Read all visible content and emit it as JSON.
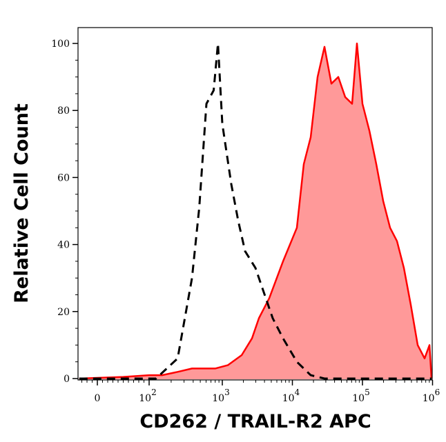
{
  "chart_data": {
    "type": "area",
    "xlabel": "CD262 / TRAIL-R2 APC",
    "ylabel": "Relative Cell Count",
    "x_scale": "biexponential",
    "ylim": [
      0,
      105
    ],
    "grid": false,
    "x_ticks": [
      {
        "value": 0,
        "base": "0",
        "exp": ""
      },
      {
        "value": 100,
        "base": "10",
        "exp": "2"
      },
      {
        "value": 1000,
        "base": "10",
        "exp": "3"
      },
      {
        "value": 10000,
        "base": "10",
        "exp": "4"
      },
      {
        "value": 100000,
        "base": "10",
        "exp": "5"
      },
      {
        "value": 1000000,
        "base": "10",
        "exp": "6"
      }
    ],
    "y_ticks": [
      "0",
      "20",
      "40",
      "60",
      "80",
      "100"
    ],
    "series": [
      {
        "style": "dashed",
        "color": "#000000",
        "fill": "none",
        "x": [
          -35,
          124,
          245,
          385,
          484,
          607,
          762,
          873,
          1000,
          1343,
          1687,
          2115,
          2972,
          3727,
          5240,
          7366,
          11590,
          18240,
          28710,
          1000000
        ],
        "y": [
          0,
          0,
          6,
          30,
          51,
          82,
          86,
          100,
          76,
          58,
          47,
          38,
          33,
          27,
          18,
          12,
          5,
          1,
          0,
          0
        ]
      },
      {
        "style": "solid",
        "color": "#ff0000",
        "fill": "#ff9999",
        "x": [
          -35,
          50,
          100,
          150,
          245,
          385,
          600,
          800,
          1200,
          1890,
          2655,
          3330,
          4680,
          7366,
          11590,
          14550,
          18240,
          22900,
          28710,
          36060,
          45200,
          56750,
          71150,
          83400,
          100000,
          125500,
          157400,
          197600,
          247700,
          311000,
          390000,
          489700,
          614000,
          771000,
          904000,
          1050000
        ],
        "y": [
          0,
          0.5,
          1,
          1,
          2,
          3,
          3,
          3,
          4,
          7,
          12,
          18,
          24,
          35,
          45,
          64,
          72,
          90,
          99,
          88,
          90,
          84,
          82,
          100,
          82,
          74,
          64,
          53,
          45,
          41,
          33,
          22,
          10,
          6,
          10,
          0
        ]
      }
    ]
  }
}
